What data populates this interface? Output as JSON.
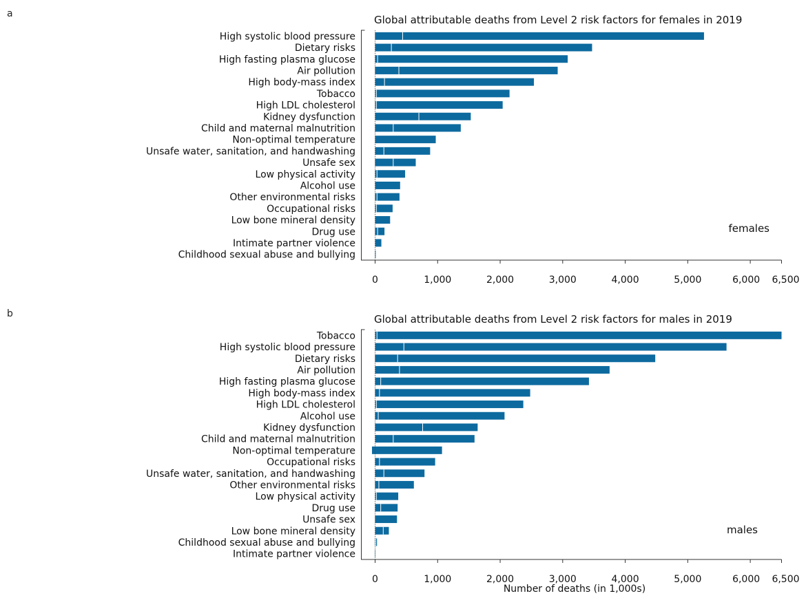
{
  "chart_data": [
    {
      "type": "bar",
      "orientation": "horizontal",
      "panel_letter": "a",
      "title": "Global attributable deaths from Level 2 risk factors for females in 2019",
      "inline_label": "females",
      "xlabel": "",
      "xlim": [
        0,
        6500
      ],
      "xticks": [
        0,
        1000,
        2000,
        3000,
        4000,
        5000,
        6000,
        6500
      ],
      "xtick_labels": [
        "0",
        "1,000",
        "2,000",
        "3,000",
        "4,000",
        "5,000",
        "6,000",
        "6,500"
      ],
      "bar_color": "#0d6a9f",
      "categories": [
        "High systolic blood pressure",
        "Dietary risks",
        "High fasting plasma glucose",
        "Air pollution",
        "High body-mass index",
        "Tobacco",
        "High LDL cholesterol",
        "Kidney dysfunction",
        "Child and maternal malnutrition",
        "Non-optimal temperature",
        "Unsafe water, sanitation, and handwashing",
        "Unsafe sex",
        "Low physical activity",
        "Alcohol use",
        "Other environmental risks",
        "Occupational risks",
        "Low bone mineral density",
        "Drug use",
        "Intimate partner violence",
        "Childhood sexual abuse and bullying"
      ],
      "values": [
        5260,
        3470,
        3080,
        2920,
        2540,
        2150,
        2040,
        1530,
        1370,
        970,
        880,
        650,
        480,
        400,
        390,
        280,
        240,
        150,
        100,
        10
      ],
      "divider_values": [
        440,
        260,
        40,
        380,
        150,
        20,
        20,
        700,
        290,
        0,
        140,
        290,
        30,
        0,
        30,
        20,
        0,
        40,
        0,
        0
      ]
    },
    {
      "type": "bar",
      "orientation": "horizontal",
      "panel_letter": "b",
      "title": "Global attributable deaths from Level 2 risk factors for males in 2019",
      "inline_label": "males",
      "xlabel": "Number of deaths (in 1,000s)",
      "xlim": [
        0,
        6500
      ],
      "xticks": [
        0,
        1000,
        2000,
        3000,
        4000,
        5000,
        6000,
        6500
      ],
      "xtick_labels": [
        "0",
        "1,000",
        "2,000",
        "3,000",
        "4,000",
        "5,000",
        "6,000",
        "6,500"
      ],
      "bar_color": "#0d6a9f",
      "categories": [
        "Tobacco",
        "High systolic blood pressure",
        "Dietary risks",
        "Air pollution",
        "High fasting plasma glucose",
        "High body-mass index",
        "High LDL cholesterol",
        "Alcohol use",
        "Kidney dysfunction",
        "Child and maternal malnutrition",
        "Non-optimal temperature",
        "Occupational risks",
        "Unsafe water, sanitation, and handwashing",
        "Other environmental risks",
        "Low physical activity",
        "Drug use",
        "Unsafe sex",
        "Low bone mineral density",
        "Childhood sexual abuse and bullying",
        "Intimate partner violence"
      ],
      "values": [
        6500,
        5620,
        4480,
        3750,
        3420,
        2480,
        2370,
        2070,
        1640,
        1590,
        1070,
        960,
        790,
        620,
        370,
        360,
        350,
        220,
        30,
        0
      ],
      "divider_values": [
        30,
        460,
        360,
        390,
        90,
        70,
        20,
        50,
        760,
        290,
        -50,
        70,
        140,
        60,
        20,
        90,
        0,
        130,
        10,
        0
      ]
    }
  ]
}
